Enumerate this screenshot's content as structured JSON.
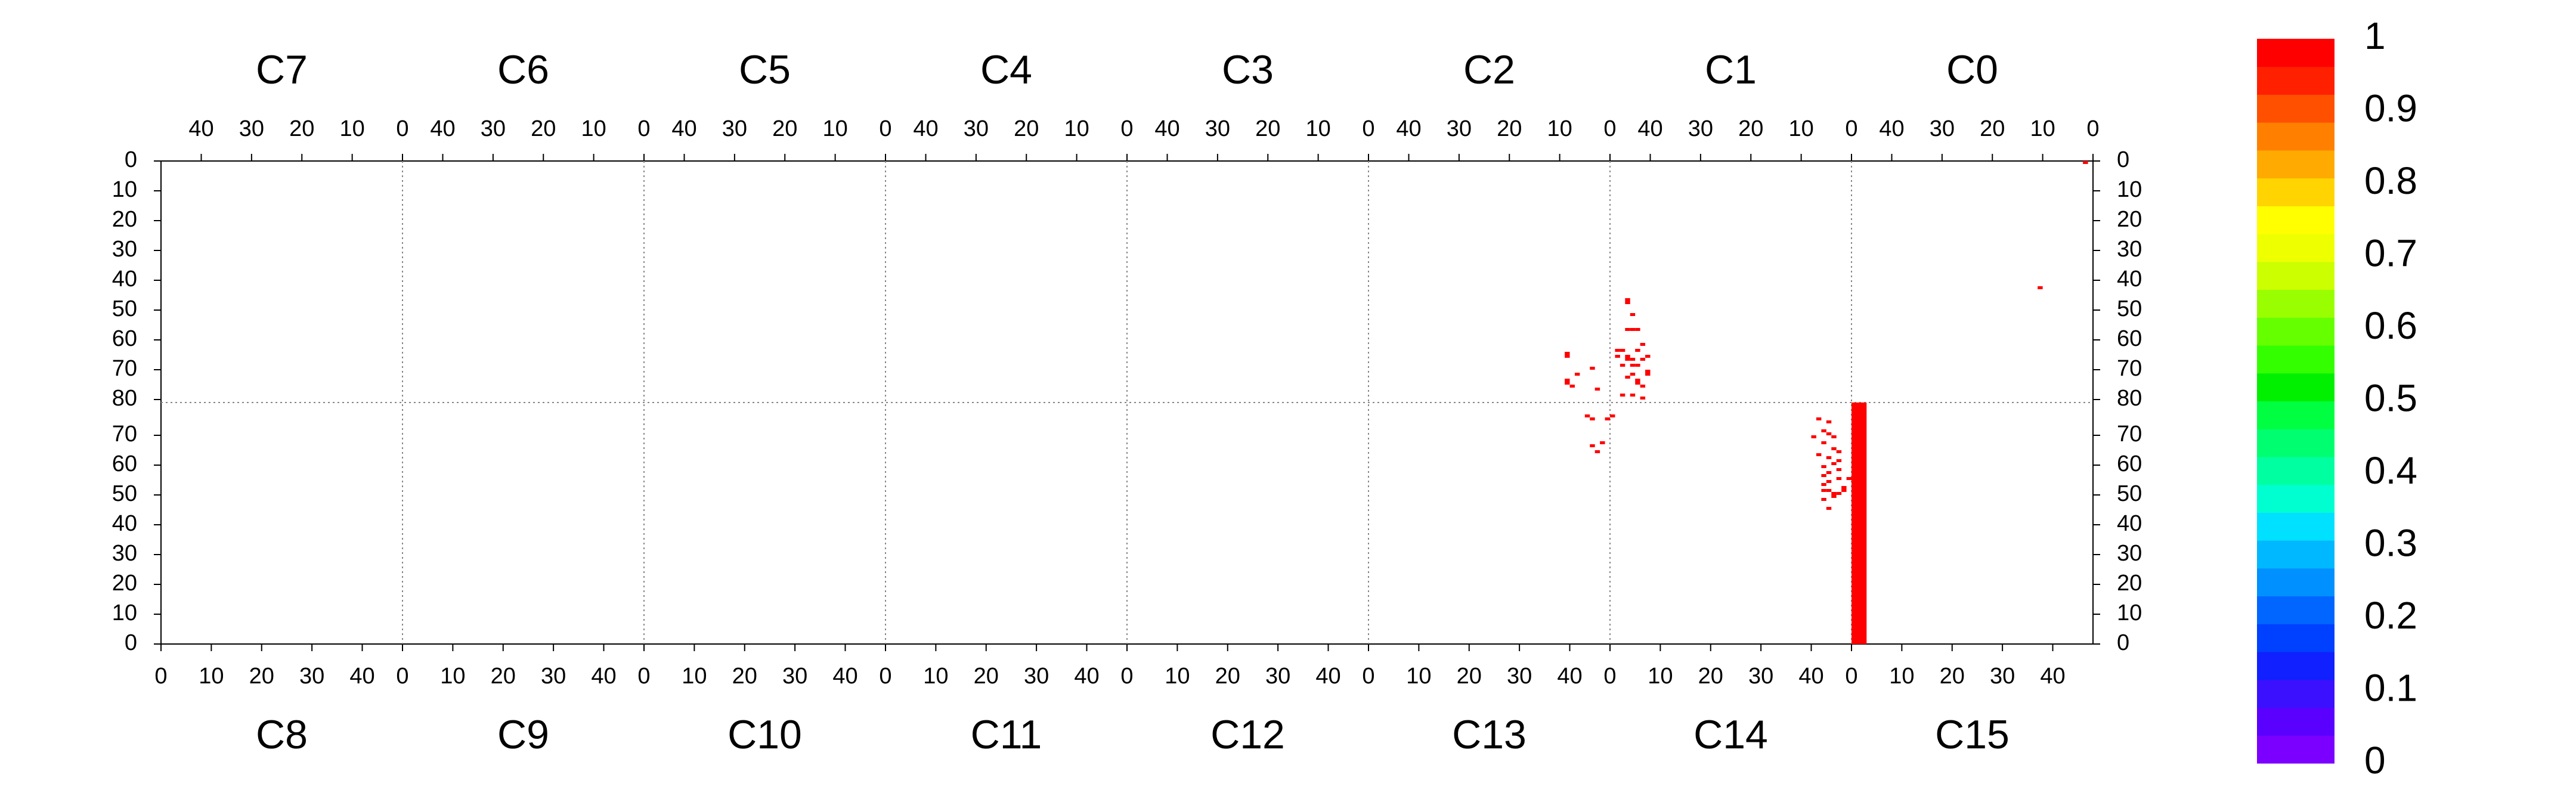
{
  "chart_data": {
    "type": "heatmap",
    "panels_top": [
      "C7",
      "C6",
      "C5",
      "C4",
      "C3",
      "C2",
      "C1",
      "C0"
    ],
    "panels_bottom": [
      "C8",
      "C9",
      "C10",
      "C11",
      "C12",
      "C13",
      "C14",
      "C15"
    ],
    "top_x_ticks": [
      "40",
      "30",
      "20",
      "10",
      "0"
    ],
    "bottom_x_ticks": [
      "0",
      "10",
      "20",
      "30",
      "40"
    ],
    "y_ticks_upper": [
      "0",
      "10",
      "20",
      "30",
      "40",
      "50",
      "60",
      "70",
      "80"
    ],
    "y_ticks_lower": [
      "70",
      "60",
      "50",
      "40",
      "30",
      "20",
      "10",
      "0"
    ],
    "colorbar": {
      "min": 0,
      "max": 1,
      "tick_labels": [
        "1",
        "0.9",
        "0.8",
        "0.7",
        "0.6",
        "0.5",
        "0.4",
        "0.3",
        "0.2",
        "0.1",
        "0"
      ],
      "colors": [
        "#7b00ff",
        "#5a00ff",
        "#3a10ff",
        "#1020ff",
        "#0040ff",
        "#0066ff",
        "#0090ff",
        "#00b8ff",
        "#00e0ff",
        "#00ffd0",
        "#00ffa0",
        "#00ff70",
        "#00ff40",
        "#00f000",
        "#33ff00",
        "#66ff00",
        "#99ff00",
        "#ccff00",
        "#eeff00",
        "#ffff00",
        "#ffd400",
        "#ffaa00",
        "#ff8000",
        "#ff5000",
        "#ff2000",
        "#ff0000"
      ]
    },
    "cell_color": "#ff0000",
    "cells": [
      {
        "board": "C0",
        "col": 1,
        "row": 0,
        "value": 1
      },
      {
        "board": "C0",
        "col": 10,
        "row": 42,
        "value": 1
      },
      {
        "board": "C1",
        "col": 44,
        "row": 46,
        "value": 1
      },
      {
        "board": "C1",
        "col": 44,
        "row": 47,
        "value": 1
      },
      {
        "board": "C1",
        "col": 43,
        "row": 51,
        "value": 1
      },
      {
        "board": "C1",
        "col": 44,
        "row": 56,
        "value": 1
      },
      {
        "board": "C1",
        "col": 43,
        "row": 56,
        "value": 1
      },
      {
        "board": "C1",
        "col": 42,
        "row": 56,
        "value": 1
      },
      {
        "board": "C1",
        "col": 41,
        "row": 61,
        "value": 1
      },
      {
        "board": "C1",
        "col": 42,
        "row": 63,
        "value": 1
      },
      {
        "board": "C1",
        "col": 45,
        "row": 63,
        "value": 1
      },
      {
        "board": "C1",
        "col": 46,
        "row": 63,
        "value": 1
      },
      {
        "board": "C1",
        "col": 44,
        "row": 65,
        "value": 1
      },
      {
        "board": "C1",
        "col": 40,
        "row": 65,
        "value": 1
      },
      {
        "board": "C1",
        "col": 46,
        "row": 65,
        "value": 1
      },
      {
        "board": "C1",
        "col": 43,
        "row": 66,
        "value": 1
      },
      {
        "board": "C1",
        "col": 44,
        "row": 66,
        "value": 1
      },
      {
        "board": "C1",
        "col": 41,
        "row": 66,
        "value": 1
      },
      {
        "board": "C1",
        "col": 45,
        "row": 68,
        "value": 1
      },
      {
        "board": "C1",
        "col": 43,
        "row": 68,
        "value": 1
      },
      {
        "board": "C1",
        "col": 42,
        "row": 68,
        "value": 1
      },
      {
        "board": "C1",
        "col": 40,
        "row": 70,
        "value": 1
      },
      {
        "board": "C1",
        "col": 40,
        "row": 71,
        "value": 1
      },
      {
        "board": "C1",
        "col": 43,
        "row": 71,
        "value": 1
      },
      {
        "board": "C1",
        "col": 44,
        "row": 72,
        "value": 1
      },
      {
        "board": "C1",
        "col": 42,
        "row": 73,
        "value": 1
      },
      {
        "board": "C1",
        "col": 42,
        "row": 74,
        "value": 1
      },
      {
        "board": "C1",
        "col": 41,
        "row": 75,
        "value": 1
      },
      {
        "board": "C1",
        "col": 43,
        "row": 78,
        "value": 1
      },
      {
        "board": "C1",
        "col": 45,
        "row": 78,
        "value": 1
      },
      {
        "board": "C2",
        "col": 8,
        "row": 64,
        "value": 1
      },
      {
        "board": "C2",
        "col": 8,
        "row": 65,
        "value": 1
      },
      {
        "board": "C2",
        "col": 3,
        "row": 69,
        "value": 1
      },
      {
        "board": "C2",
        "col": 6,
        "row": 71,
        "value": 1
      },
      {
        "board": "C2",
        "col": 8,
        "row": 73,
        "value": 1
      },
      {
        "board": "C2",
        "col": 8,
        "row": 74,
        "value": 1
      },
      {
        "board": "C2",
        "col": 7,
        "row": 75,
        "value": 1
      },
      {
        "board": "C2",
        "col": 2,
        "row": 76,
        "value": 1
      },
      {
        "board": "C1",
        "col": 41,
        "row": 79,
        "value": 1
      },
      {
        "board": "C14",
        "col": 41,
        "row": 75,
        "value": 1
      },
      {
        "board": "C14",
        "col": 43,
        "row": 74,
        "value": 1
      },
      {
        "board": "C14",
        "col": 42,
        "row": 71,
        "value": 1
      },
      {
        "board": "C14",
        "col": 43,
        "row": 70,
        "value": 1
      },
      {
        "board": "C14",
        "col": 44,
        "row": 69,
        "value": 1
      },
      {
        "board": "C14",
        "col": 40,
        "row": 69,
        "value": 1
      },
      {
        "board": "C14",
        "col": 42,
        "row": 67,
        "value": 1
      },
      {
        "board": "C14",
        "col": 44,
        "row": 65,
        "value": 1
      },
      {
        "board": "C14",
        "col": 45,
        "row": 64,
        "value": 1
      },
      {
        "board": "C14",
        "col": 41,
        "row": 63,
        "value": 1
      },
      {
        "board": "C14",
        "col": 43,
        "row": 62,
        "value": 1
      },
      {
        "board": "C14",
        "col": 45,
        "row": 61,
        "value": 1
      },
      {
        "board": "C14",
        "col": 44,
        "row": 60,
        "value": 1
      },
      {
        "board": "C14",
        "col": 42,
        "row": 59,
        "value": 1
      },
      {
        "board": "C14",
        "col": 45,
        "row": 58,
        "value": 1
      },
      {
        "board": "C14",
        "col": 43,
        "row": 57,
        "value": 1
      },
      {
        "board": "C14",
        "col": 42,
        "row": 56,
        "value": 1
      },
      {
        "board": "C14",
        "col": 45,
        "row": 55,
        "value": 1
      },
      {
        "board": "C14",
        "col": 47,
        "row": 55,
        "value": 1
      },
      {
        "board": "C14",
        "col": 43,
        "row": 54,
        "value": 1
      },
      {
        "board": "C14",
        "col": 42,
        "row": 53,
        "value": 1
      },
      {
        "board": "C14",
        "col": 46,
        "row": 52,
        "value": 1
      },
      {
        "board": "C14",
        "col": 46,
        "row": 51,
        "value": 1
      },
      {
        "board": "C14",
        "col": 43,
        "row": 51,
        "value": 1
      },
      {
        "board": "C14",
        "col": 42,
        "row": 51,
        "value": 1
      },
      {
        "board": "C14",
        "col": 44,
        "row": 50,
        "value": 1
      },
      {
        "board": "C14",
        "col": 45,
        "row": 50,
        "value": 1
      },
      {
        "board": "C14",
        "col": 44,
        "row": 49,
        "value": 1
      },
      {
        "board": "C14",
        "col": 42,
        "row": 48,
        "value": 1
      },
      {
        "board": "C14",
        "col": 43,
        "row": 45,
        "value": 1
      },
      {
        "board": "C13",
        "col": 48,
        "row": 76,
        "value": 1
      },
      {
        "board": "C13",
        "col": 47,
        "row": 75,
        "value": 1
      },
      {
        "board": "C13",
        "col": 43,
        "row": 76,
        "value": 1
      },
      {
        "board": "C13",
        "col": 44,
        "row": 75,
        "value": 1
      },
      {
        "board": "C13",
        "col": 46,
        "row": 67,
        "value": 1
      },
      {
        "board": "C13",
        "col": 44,
        "row": 66,
        "value": 1
      },
      {
        "board": "C13",
        "col": 45,
        "row": 64,
        "value": 1
      },
      {
        "board": "C14",
        "col": 48,
        "row": 80,
        "value": 1,
        "span_rows": 81,
        "span_cols": 3
      }
    ]
  }
}
